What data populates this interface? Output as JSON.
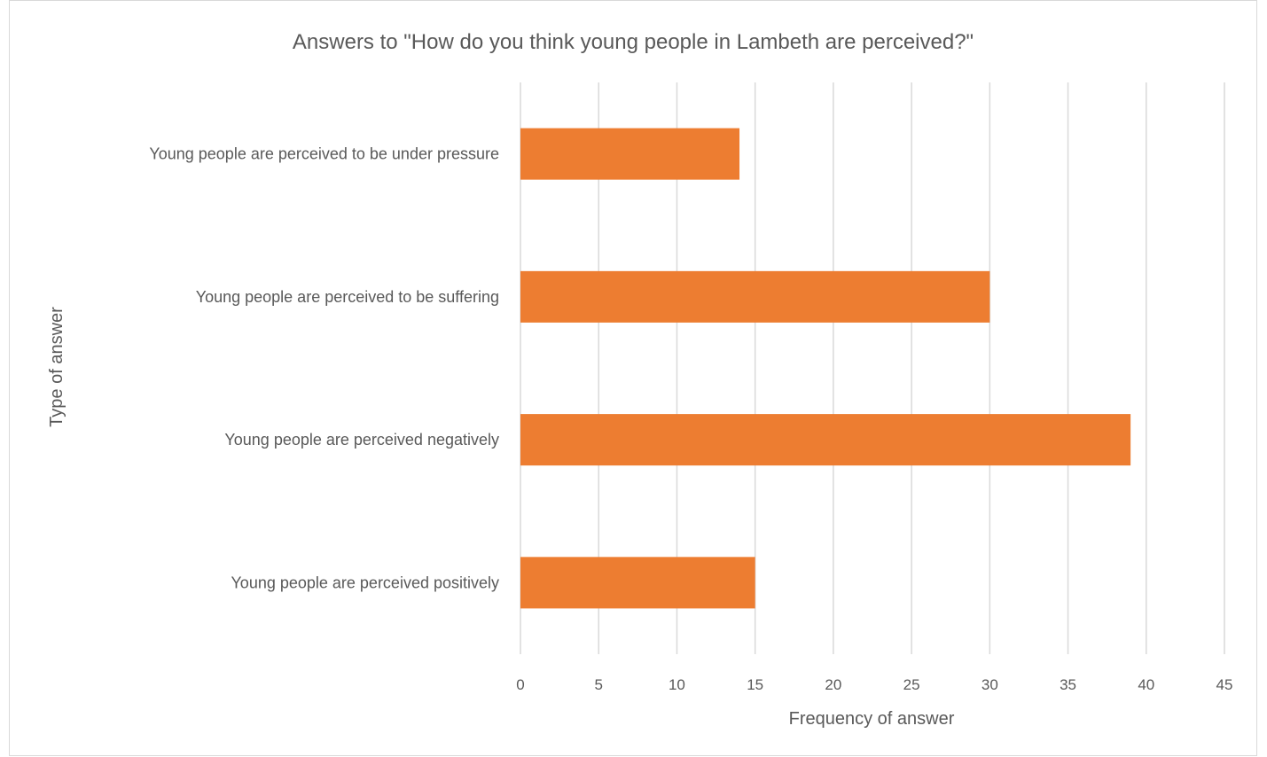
{
  "chart_data": {
    "type": "bar",
    "orientation": "horizontal",
    "title": "Answers to \"How do you think young people in Lambeth are perceived?\"",
    "xlabel": "Frequency of answer",
    "ylabel": "Type of answer",
    "categories": [
      "Young people are perceived to be under pressure",
      "Young people are perceived to be suffering",
      "Young people are perceived negatively",
      "Young people are perceived positively"
    ],
    "values": [
      14,
      30,
      39,
      15
    ],
    "xlim": [
      0,
      45
    ],
    "xticks": [
      "0",
      "5",
      "10",
      "15",
      "20",
      "25",
      "30",
      "35",
      "40",
      "45"
    ],
    "grid": true,
    "legend": "none",
    "bar_color": "#ED7D31"
  }
}
